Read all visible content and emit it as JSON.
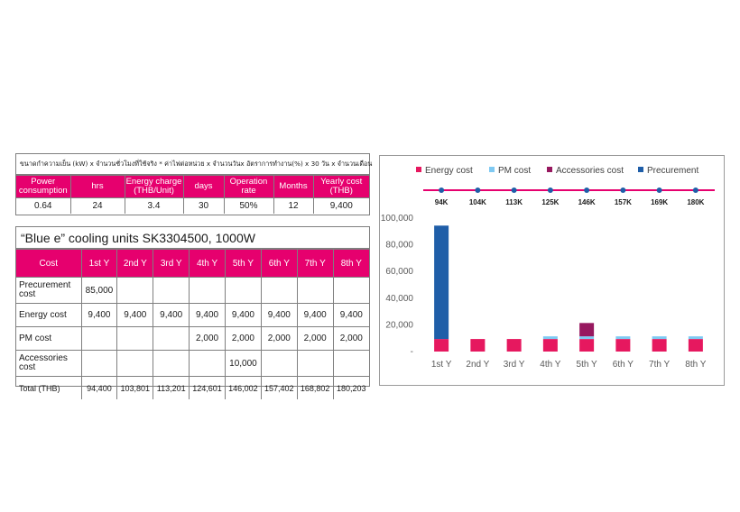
{
  "formula": {
    "text": "ขนาดกำความเย็น (kW) x จำนวนชั่วโมงที่ใช้จริง * ค่าไฟต่อหน่วย x จำนวนวันx อัตราการทำงาน(%) x 30 วัน x จำนวนเดือน",
    "headers": [
      "Power consumption",
      "hrs",
      "Energy charge (THB/Unit)",
      "days",
      "Operation rate",
      "Months",
      "Yearly cost (THB)"
    ],
    "values": [
      "0.64",
      "24",
      "3.4",
      "30",
      "50%",
      "12",
      "9,400"
    ]
  },
  "cost_table": {
    "title": "“Blue e” cooling units SK3304500, 1000W",
    "headers": [
      "Cost",
      "1st Y",
      "2nd Y",
      "3rd Y",
      "4th Y",
      "5th Y",
      "6th Y",
      "7th Y",
      "8th Y"
    ],
    "rows": [
      {
        "label": "Precurement cost",
        "cells": [
          "85,000",
          "",
          "",
          "",
          "",
          "",
          "",
          ""
        ]
      },
      {
        "label": "Energy cost",
        "cells": [
          "9,400",
          "9,400",
          "9,400",
          "9,400",
          "9,400",
          "9,400",
          "9,400",
          "9,400"
        ]
      },
      {
        "label": "PM cost",
        "cells": [
          "",
          "",
          "",
          "2,000",
          "2,000",
          "2,000",
          "2,000",
          "2,000"
        ]
      },
      {
        "label": "Accessories cost",
        "cells": [
          "",
          "",
          "",
          "",
          "10,000",
          "",
          "",
          ""
        ]
      },
      {
        "label": "Total (THB)",
        "cells": [
          "94,400",
          "103,801",
          "113,201",
          "124,601",
          "146,002",
          "157,402",
          "168,802",
          "180,203"
        ]
      }
    ]
  },
  "chart_data": {
    "type": "bar",
    "stacked": true,
    "categories": [
      "1st Y",
      "2nd Y",
      "3rd Y",
      "4th Y",
      "5th Y",
      "6th Y",
      "7th Y",
      "8th Y"
    ],
    "series": [
      {
        "name": "Energy cost",
        "color": "#e6185f",
        "values": [
          9400,
          9400,
          9400,
          9400,
          9400,
          9400,
          9400,
          9400
        ]
      },
      {
        "name": "PM cost",
        "color": "#7fc9f2",
        "values": [
          0,
          0,
          0,
          2000,
          2000,
          2000,
          2000,
          2000
        ]
      },
      {
        "name": "Accessories cost",
        "color": "#97185f",
        "values": [
          0,
          0,
          0,
          0,
          10000,
          0,
          0,
          0
        ]
      },
      {
        "name": "Precurement",
        "color": "#1f5ea8",
        "values": [
          85000,
          0,
          0,
          0,
          0,
          0,
          0,
          0
        ]
      }
    ],
    "cumulative_labels": [
      "94K",
      "104K",
      "113K",
      "125K",
      "146K",
      "157K",
      "169K",
      "180K"
    ],
    "yticks": [
      "100,000",
      "80,000",
      "60,000",
      "40,000",
      "20,000",
      "-"
    ],
    "ylim": [
      0,
      100000
    ],
    "legend_position": "top",
    "grid": false
  }
}
